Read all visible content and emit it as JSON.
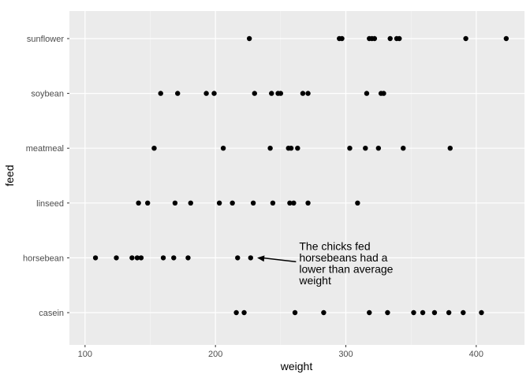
{
  "chart_data": {
    "type": "scatter",
    "xlabel": "weight",
    "ylabel": "feed",
    "xlim": [
      88,
      437
    ],
    "x_ticks": [
      100,
      200,
      300,
      400
    ],
    "categories": [
      "casein",
      "horsebean",
      "linseed",
      "meatmeal",
      "soybean",
      "sunflower"
    ],
    "grid": true,
    "legend": "none",
    "colors": {
      "panel": "#ebebeb",
      "grid": "#ffffff",
      "point": "#000000"
    },
    "series": [
      {
        "category": "sunflower",
        "x": [
          226,
          295,
          297,
          318,
          320,
          322,
          334,
          339,
          341,
          392,
          423
        ]
      },
      {
        "category": "soybean",
        "x": [
          158,
          171,
          193,
          199,
          230,
          243,
          248,
          250,
          267,
          271,
          316,
          327,
          329
        ]
      },
      {
        "category": "meatmeal",
        "x": [
          153,
          206,
          242,
          256,
          258,
          263,
          303,
          315,
          325,
          344,
          380
        ]
      },
      {
        "category": "linseed",
        "x": [
          141,
          148,
          169,
          181,
          203,
          213,
          229,
          244,
          257,
          260,
          271,
          309
        ]
      },
      {
        "category": "horsebean",
        "x": [
          108,
          124,
          136,
          140,
          143,
          160,
          168,
          179,
          217,
          227
        ]
      },
      {
        "category": "casein",
        "x": [
          216,
          222,
          261,
          283,
          318,
          332,
          352,
          359,
          368,
          379,
          390,
          404
        ]
      }
    ],
    "annotation": {
      "lines": [
        "The chicks fed",
        "horsebeans had a",
        "lower than average",
        "weight"
      ],
      "arrow_from": [
        260,
        "horsebean"
      ],
      "arrow_to": [
        232,
        "horsebean"
      ]
    }
  }
}
